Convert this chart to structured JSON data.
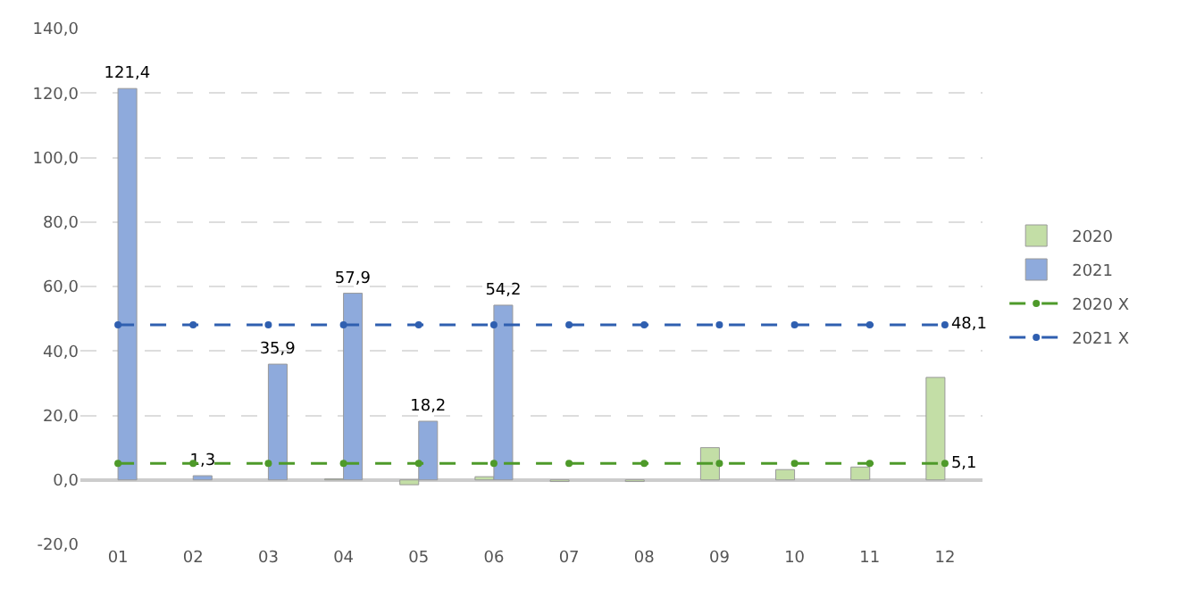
{
  "chart_data": {
    "type": "bar",
    "categories": [
      "01",
      "02",
      "03",
      "04",
      "05",
      "06",
      "07",
      "08",
      "09",
      "10",
      "11",
      "12"
    ],
    "series": [
      {
        "name": "2020",
        "color": "#c3dea6",
        "values": [
          null,
          null,
          null,
          0.3,
          -1.5,
          1.0,
          -0.5,
          -0.5,
          10.0,
          3.2,
          4.0,
          31.8
        ]
      },
      {
        "name": "2021",
        "color": "#8eaadc",
        "values": [
          121.4,
          1.3,
          35.9,
          57.9,
          18.2,
          54.2,
          null,
          null,
          null,
          null,
          null,
          null
        ],
        "value_labels": [
          "121,4",
          "1,3",
          "35,9",
          "57,9",
          "18,2",
          "54,2",
          null,
          null,
          null,
          null,
          null,
          null
        ]
      },
      {
        "name": "2020 X",
        "type": "line",
        "color": "#4e9a2a",
        "line_style": "dashed",
        "marker": "circle",
        "values": [
          5.1,
          5.1,
          5.1,
          5.1,
          5.1,
          5.1,
          5.1,
          5.1,
          5.1,
          5.1,
          5.1,
          5.1
        ],
        "value_labels": [
          null,
          null,
          null,
          null,
          null,
          null,
          null,
          null,
          null,
          null,
          null,
          "5,1"
        ]
      },
      {
        "name": "2021 X",
        "type": "line",
        "color": "#2f5fb0",
        "line_style": "dashed",
        "marker": "circle",
        "values": [
          48.1,
          48.1,
          48.1,
          48.1,
          48.1,
          48.1,
          48.1,
          48.1,
          48.1,
          48.1,
          48.1,
          48.1
        ],
        "value_labels": [
          null,
          null,
          null,
          null,
          null,
          null,
          null,
          null,
          null,
          null,
          null,
          "48,1"
        ]
      }
    ],
    "ylim": [
      -20,
      140
    ],
    "yticks": [
      {
        "value": -20,
        "label": "-20,0"
      },
      {
        "value": 0,
        "label": "0,0"
      },
      {
        "value": 20,
        "label": "20,0"
      },
      {
        "value": 40,
        "label": "40,0"
      },
      {
        "value": 60,
        "label": "60,0"
      },
      {
        "value": 80,
        "label": "80,0"
      },
      {
        "value": 100,
        "label": "100,0"
      },
      {
        "value": 120,
        "label": "120,0"
      },
      {
        "value": 140,
        "label": "140,0"
      }
    ],
    "grid": "y",
    "legend": "right"
  }
}
